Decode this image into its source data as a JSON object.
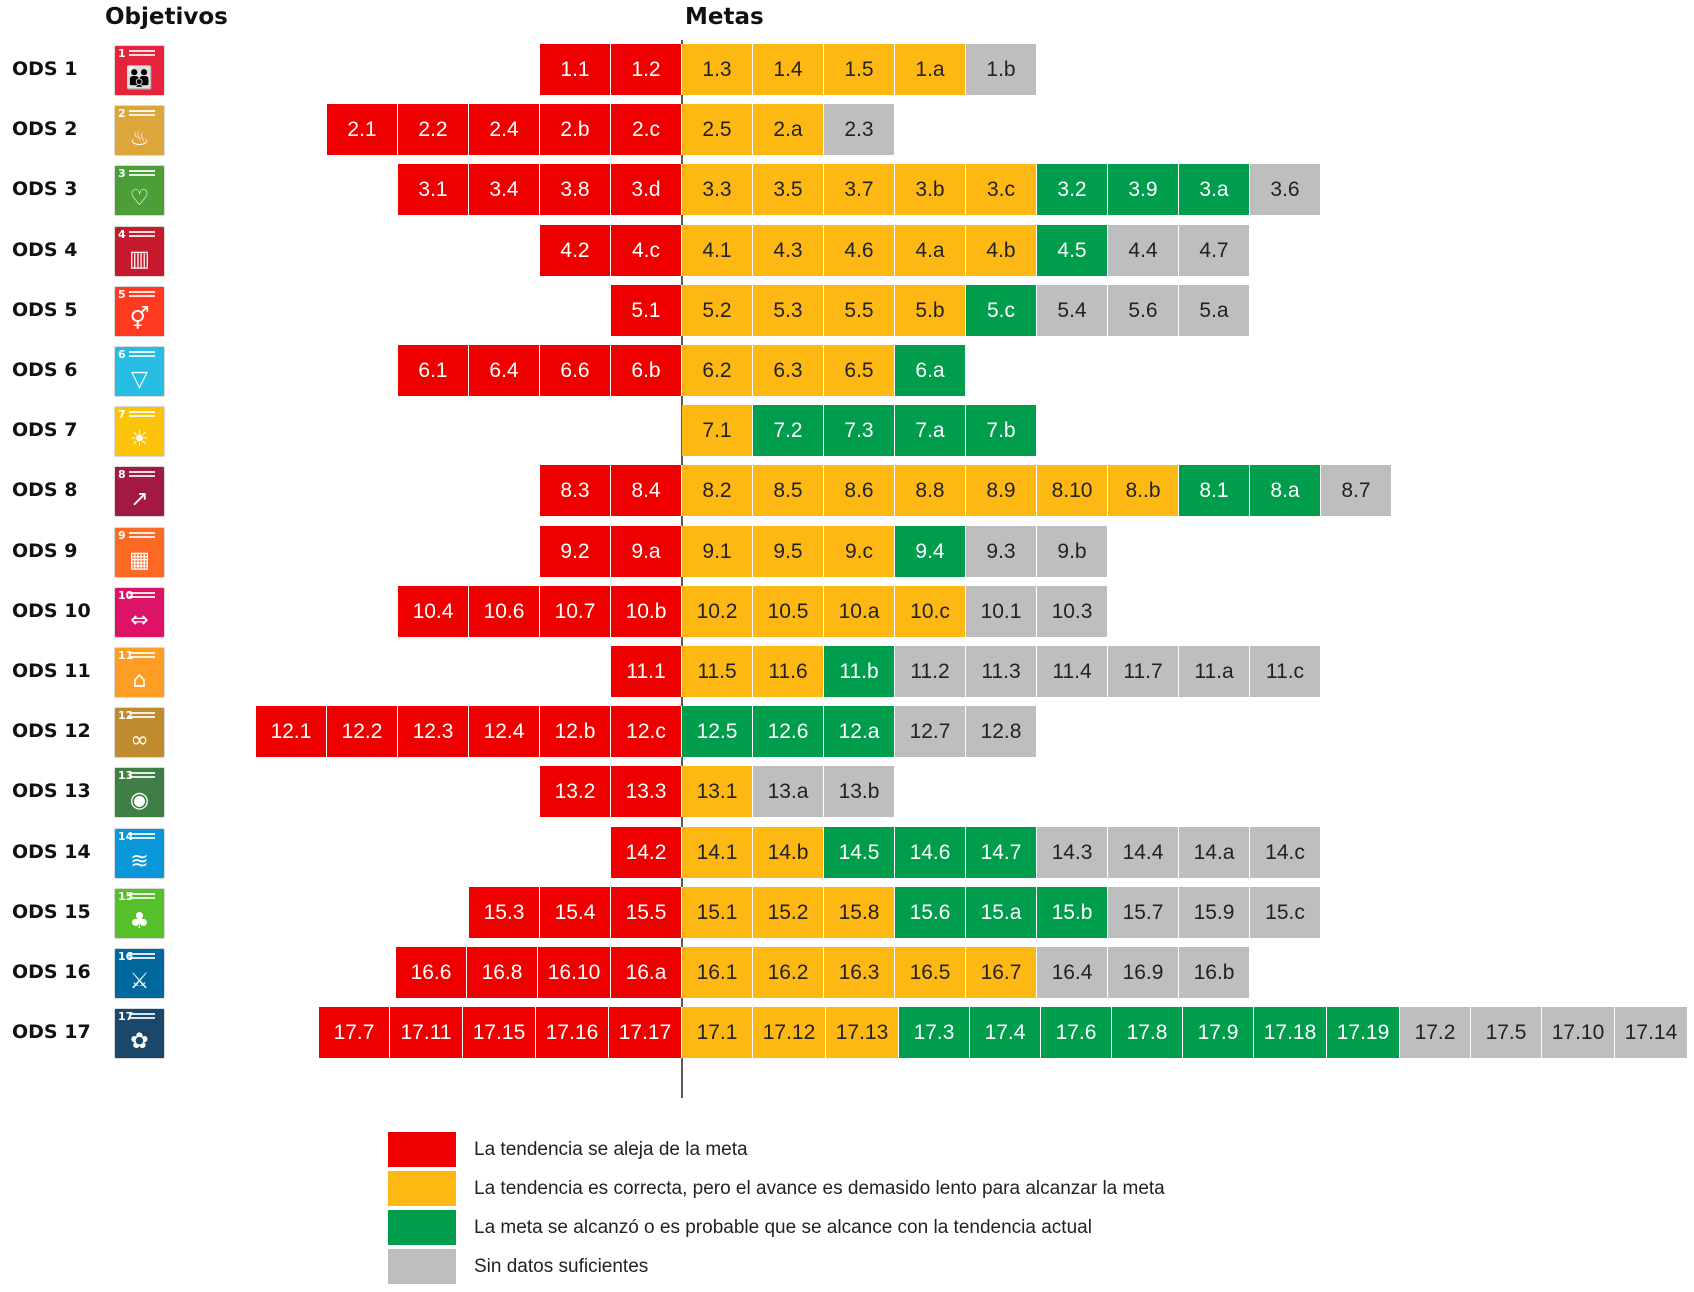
{
  "headers": {
    "objetivos": "Objetivos",
    "metas": "Metas"
  },
  "colors": {
    "red": "#ef0000",
    "yellow": "#fdb813",
    "green": "#009d4d",
    "gray": "#bebebe"
  },
  "chart_data": {
    "type": "table",
    "title": "",
    "status_keys": [
      "red",
      "yellow",
      "green",
      "gray"
    ],
    "rows": [
      {
        "goal": "ODS 1",
        "icon_color": "#e5243b",
        "icon_glyph": "people-icon",
        "red": [
          "1.1",
          "1.2"
        ],
        "yellow": [
          "1.3",
          "1.4",
          "1.5",
          "1.a"
        ],
        "green": [],
        "gray": [
          "1.b"
        ]
      },
      {
        "goal": "ODS 2",
        "icon_color": "#dda63a",
        "icon_glyph": "bowl-icon",
        "red": [
          "2.1",
          "2.2",
          "2.4",
          "2.b",
          "2.c"
        ],
        "yellow": [
          "2.5",
          "2.a"
        ],
        "green": [],
        "gray": [
          "2.3"
        ]
      },
      {
        "goal": "ODS 3",
        "icon_color": "#4c9f38",
        "icon_glyph": "heartbeat-icon",
        "red": [
          "3.1",
          "3.4",
          "3.8",
          "3.d"
        ],
        "yellow": [
          "3.3",
          "3.5",
          "3.7",
          "3.b",
          "3.c"
        ],
        "green": [
          "3.2",
          "3.9",
          "3.a"
        ],
        "gray": [
          "3.6"
        ]
      },
      {
        "goal": "ODS 4",
        "icon_color": "#c5192d",
        "icon_glyph": "book-icon",
        "red": [
          "4.2",
          "4.c"
        ],
        "yellow": [
          "4.1",
          "4.3",
          "4.6",
          "4.a",
          "4.b"
        ],
        "green": [
          "4.5"
        ],
        "gray": [
          "4.4",
          "4.7"
        ]
      },
      {
        "goal": "ODS 5",
        "icon_color": "#ff3a21",
        "icon_glyph": "gender-icon",
        "red": [
          "5.1"
        ],
        "yellow": [
          "5.2",
          "5.3",
          "5.5",
          "5.b"
        ],
        "green": [
          "5.c"
        ],
        "gray": [
          "5.4",
          "5.6",
          "5.a"
        ]
      },
      {
        "goal": "ODS 6",
        "icon_color": "#26bde2",
        "icon_glyph": "water-glass-icon",
        "red": [
          "6.1",
          "6.4",
          "6.6",
          "6.b"
        ],
        "yellow": [
          "6.2",
          "6.3",
          "6.5"
        ],
        "green": [
          "6.a"
        ],
        "gray": []
      },
      {
        "goal": "ODS 7",
        "icon_color": "#fcc30b",
        "icon_glyph": "sun-icon",
        "red": [],
        "yellow": [
          "7.1"
        ],
        "green": [
          "7.2",
          "7.3",
          "7.a",
          "7.b"
        ],
        "gray": []
      },
      {
        "goal": "ODS 8",
        "icon_color": "#a21942",
        "icon_glyph": "growth-chart-icon",
        "red": [
          "8.3",
          "8.4"
        ],
        "yellow": [
          "8.2",
          "8.5",
          "8.6",
          "8.8",
          "8.9",
          "8.10",
          "8..b"
        ],
        "green": [
          "8.1",
          "8.a"
        ],
        "gray": [
          "8.7"
        ]
      },
      {
        "goal": "ODS 9",
        "icon_color": "#fd6925",
        "icon_glyph": "cubes-icon",
        "red": [
          "9.2",
          "9.a"
        ],
        "yellow": [
          "9.1",
          "9.5",
          "9.c"
        ],
        "green": [
          "9.4"
        ],
        "gray": [
          "9.3",
          "9.b"
        ]
      },
      {
        "goal": "ODS 10",
        "icon_color": "#dd1367",
        "icon_glyph": "equality-arrows-icon",
        "red": [
          "10.4",
          "10.6",
          "10.7",
          "10.b"
        ],
        "yellow": [
          "10.2",
          "10.5",
          "10.a",
          "10.c"
        ],
        "green": [],
        "gray": [
          "10.1",
          "10.3"
        ]
      },
      {
        "goal": "ODS 11",
        "icon_color": "#fd9d24",
        "icon_glyph": "city-icon",
        "red": [
          "11.1"
        ],
        "yellow": [
          "11.5",
          "11.6"
        ],
        "green": [
          "11.b"
        ],
        "gray": [
          "11.2",
          "11.3",
          "11.4",
          "11.7",
          "11.a",
          "11.c"
        ]
      },
      {
        "goal": "ODS 12",
        "icon_color": "#bf8b2e",
        "icon_glyph": "infinity-icon",
        "red": [
          "12.1",
          "12.2",
          "12.3",
          "12.4",
          "12.b",
          "12.c"
        ],
        "yellow": [],
        "green": [
          "12.5",
          "12.6",
          "12.a"
        ],
        "gray": [
          "12.7",
          "12.8"
        ]
      },
      {
        "goal": "ODS 13",
        "icon_color": "#3f7e44",
        "icon_glyph": "eye-globe-icon",
        "red": [
          "13.2",
          "13.3"
        ],
        "yellow": [
          "13.1"
        ],
        "green": [],
        "gray": [
          "13.a",
          "13.b"
        ]
      },
      {
        "goal": "ODS 14",
        "icon_color": "#0a97d9",
        "icon_glyph": "fish-icon",
        "red": [
          "14.2"
        ],
        "yellow": [
          "14.1",
          "14.b"
        ],
        "green": [
          "14.5",
          "14.6",
          "14.7"
        ],
        "gray": [
          "14.3",
          "14.4",
          "14.a",
          "14.c"
        ]
      },
      {
        "goal": "ODS 15",
        "icon_color": "#56c02b",
        "icon_glyph": "tree-icon",
        "red": [
          "15.3",
          "15.4",
          "15.5"
        ],
        "yellow": [
          "15.1",
          "15.2",
          "15.8"
        ],
        "green": [
          "15.6",
          "15.a",
          "15.b"
        ],
        "gray": [
          "15.7",
          "15.9",
          "15.c"
        ]
      },
      {
        "goal": "ODS 16",
        "icon_color": "#00689d",
        "icon_glyph": "dove-icon",
        "red": [
          "16.6",
          "16.8",
          "16.10",
          "16.a"
        ],
        "yellow": [
          "16.1",
          "16.2",
          "16.3",
          "16.5",
          "16.7"
        ],
        "green": [],
        "gray": [
          "16.4",
          "16.9",
          "16.b"
        ]
      },
      {
        "goal": "ODS 17",
        "icon_color": "#19486a",
        "icon_glyph": "flower-rings-icon",
        "red": [
          "17.7",
          "17.11",
          "17.15",
          "17.16",
          "17.17"
        ],
        "yellow": [
          "17.1",
          "17.12",
          "17.13"
        ],
        "green": [
          "17.3",
          "17.4",
          "17.6",
          "17.8",
          "17.9",
          "17.18",
          "17.19"
        ],
        "gray": [
          "17.2",
          "17.5",
          "17.10",
          "17.14"
        ]
      }
    ],
    "legend": [
      {
        "key": "red",
        "color": "#ef0000",
        "label": "La tendencia se aleja de la meta"
      },
      {
        "key": "yellow",
        "color": "#fdb813",
        "label": "La tendencia es correcta, pero el avance es demasido lento para alcanzar la meta"
      },
      {
        "key": "green",
        "color": "#009d4d",
        "label": "La meta se alcanzó o es probable que se alcance con la tendencia actual"
      },
      {
        "key": "gray",
        "color": "#bebebe",
        "label": "Sin datos suficientes"
      }
    ]
  }
}
